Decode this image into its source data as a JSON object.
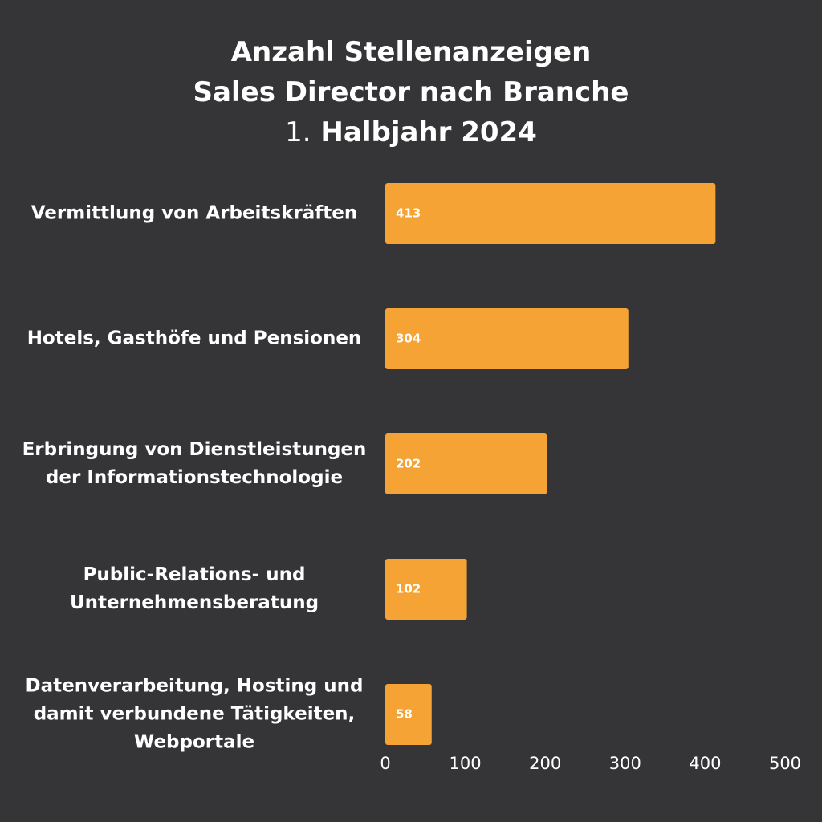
{
  "chart_data": {
    "type": "bar",
    "orientation": "horizontal",
    "title": {
      "line1": "Anzahl Stellenanzeigen",
      "line2": "Sales Director nach Branche",
      "line3_number": "1.",
      "line3_text": "Halbjahr 2024"
    },
    "categories": [
      [
        "Vermittlung von Arbeitskräften"
      ],
      [
        "Hotels, Gasthöfe und Pensionen"
      ],
      [
        "Erbringung von Dienstleistungen",
        "der Informationstechnologie"
      ],
      [
        "Public-Relations- und",
        "Unternehmensberatung"
      ],
      [
        "Datenverarbeitung, Hosting und",
        "damit verbundene Tätigkeiten,",
        "Webportale"
      ]
    ],
    "values": [
      413,
      304,
      202,
      102,
      58
    ],
    "data_labels": [
      "413",
      "304",
      "202",
      "102",
      "58"
    ],
    "xlim": [
      0,
      500
    ],
    "xticks": [
      "0",
      "100",
      "200",
      "300",
      "400",
      "500"
    ],
    "xlabel": "",
    "ylabel": "",
    "grid": false,
    "legend": "none",
    "bar_color": "#f4a334",
    "background_color": "#353537",
    "text_color": "#ffffff"
  }
}
